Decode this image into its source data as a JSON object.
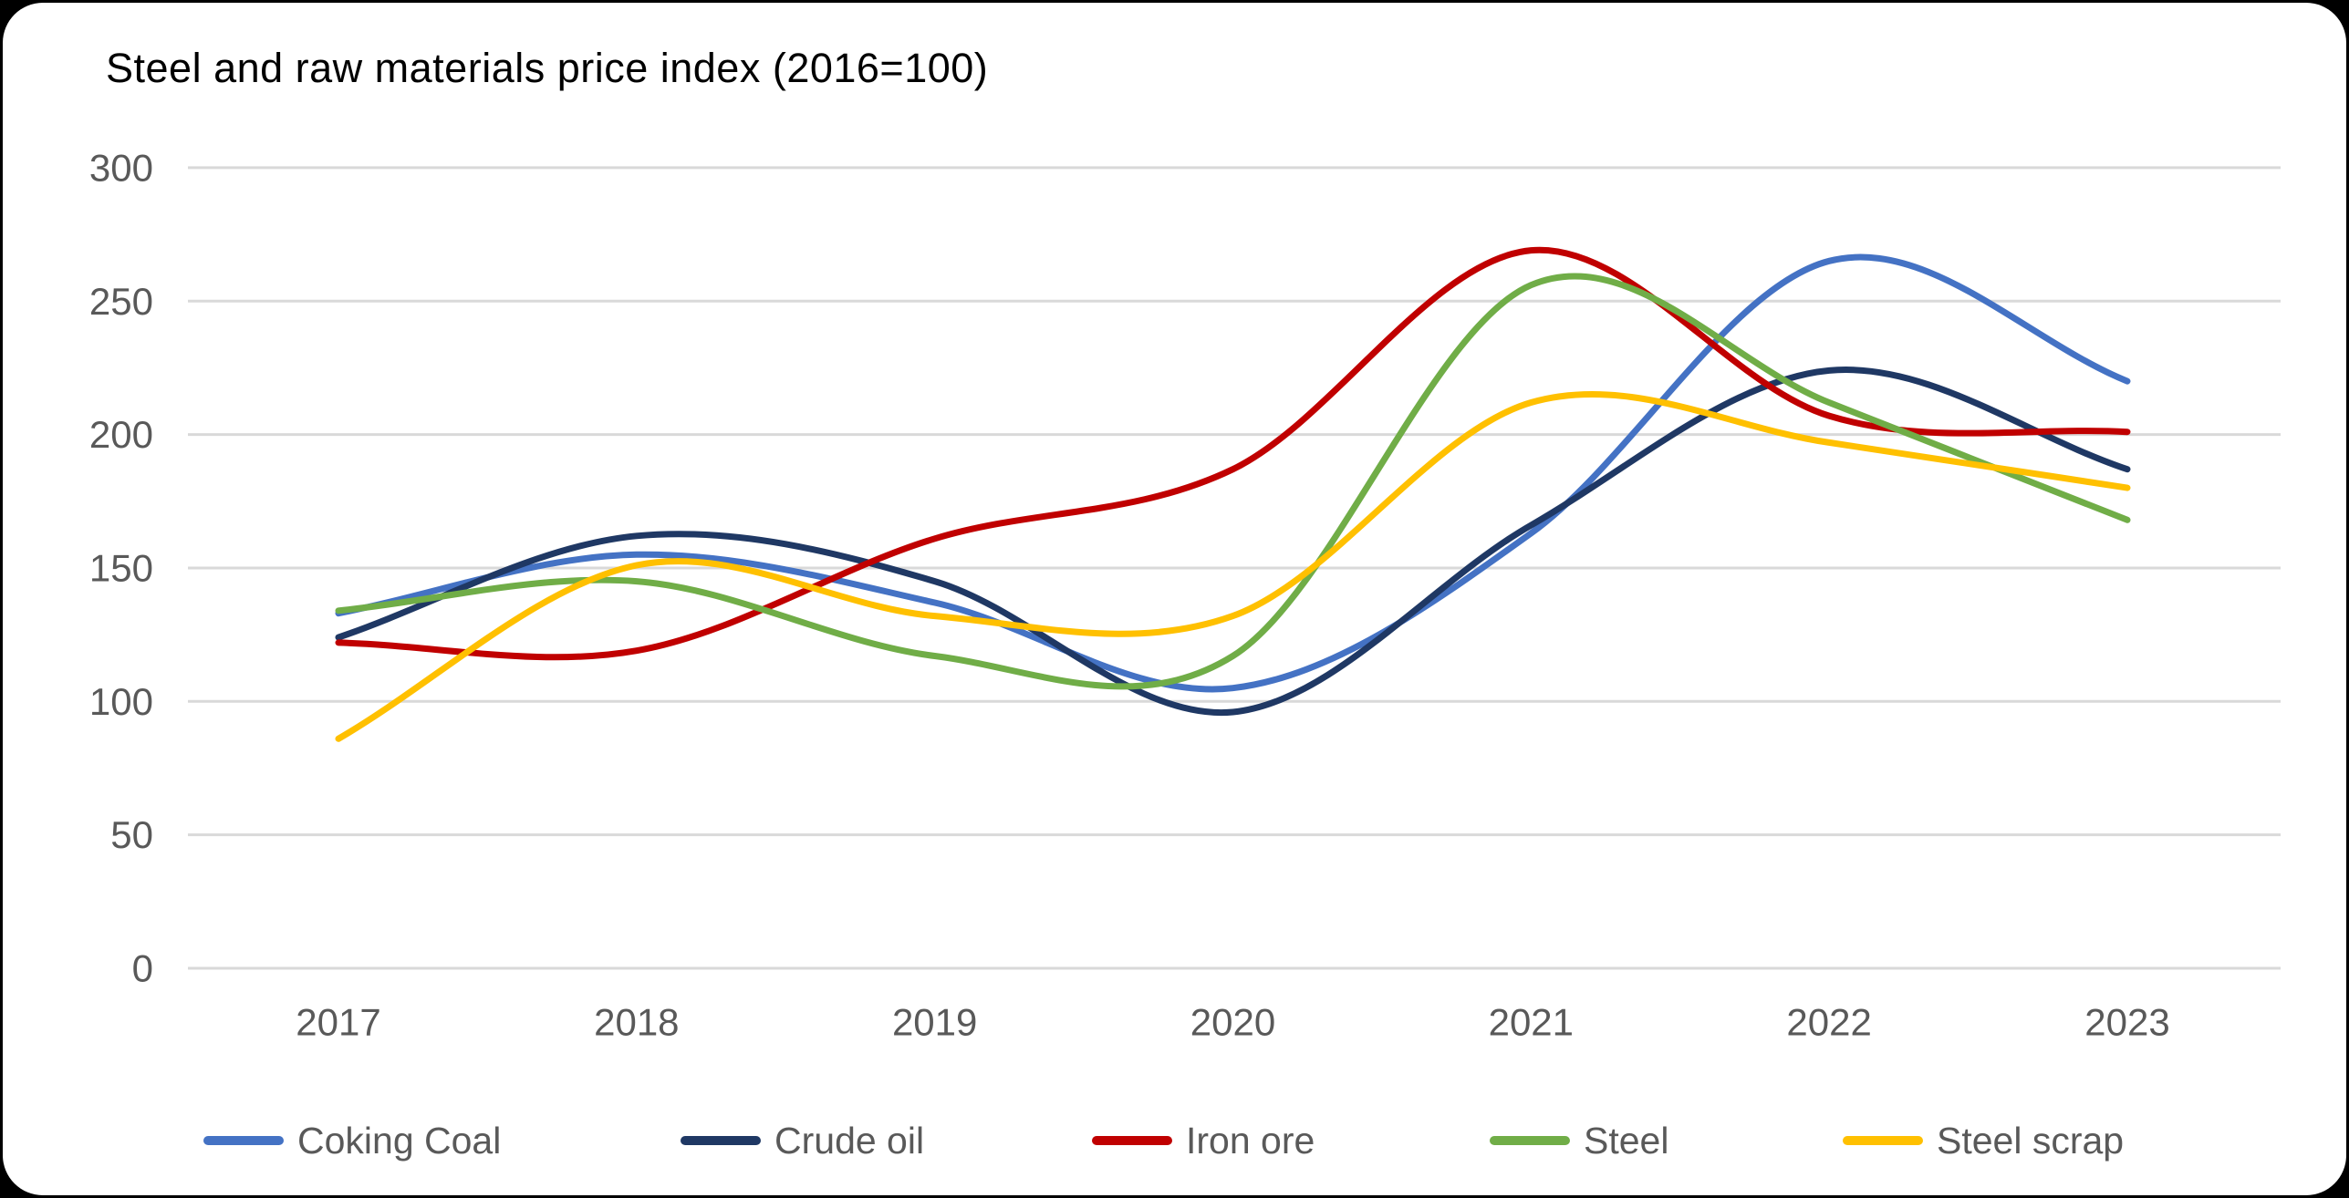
{
  "colors": {
    "background": "#FFFFFF",
    "frame": "#000000",
    "grid": "#D9D9D9",
    "axis_text": "#595959",
    "title_text": "#000000"
  },
  "chart_data": {
    "type": "line",
    "title": "Steel and raw materials price index (2016=100)",
    "x": [
      2017,
      2018,
      2019,
      2020,
      2021,
      2022,
      2023
    ],
    "series": [
      {
        "name": "Coking Coal",
        "color": "#4472C4",
        "values": [
          133,
          155,
          137,
          105,
          163,
          265,
          220
        ]
      },
      {
        "name": "Crude oil",
        "color": "#1F3864",
        "values": [
          124,
          162,
          145,
          96,
          166,
          224,
          187
        ]
      },
      {
        "name": "Iron ore",
        "color": "#C00000",
        "values": [
          122,
          119,
          161,
          187,
          269,
          207,
          201
        ]
      },
      {
        "name": "Steel",
        "color": "#70AD47",
        "values": [
          134,
          145,
          117,
          117,
          256,
          212,
          168
        ]
      },
      {
        "name": "Steel scrap",
        "color": "#FFC000",
        "values": [
          86,
          151,
          132,
          132,
          212,
          197,
          180
        ]
      }
    ],
    "ylim": [
      0,
      300
    ],
    "yticks": [
      0,
      50,
      100,
      150,
      200,
      250,
      300
    ],
    "grid": "horizontal",
    "legend_position": "bottom",
    "smooth": true
  }
}
